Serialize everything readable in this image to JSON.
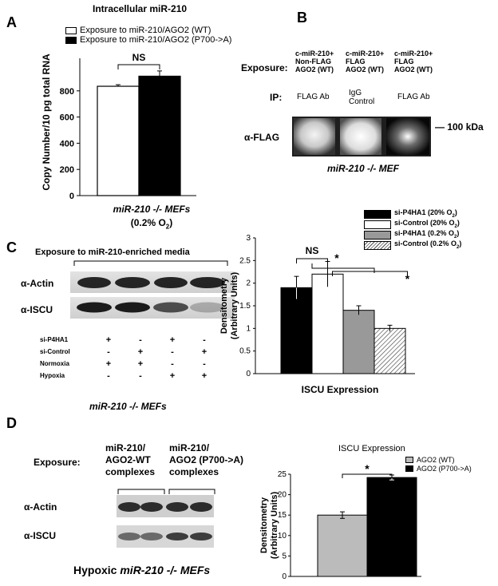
{
  "panels": {
    "A": {
      "letter": "A",
      "title": "Intracellular miR-210",
      "legend": [
        {
          "label": "Exposure to miR-210/AGO2 (WT)",
          "fill": "#ffffff"
        },
        {
          "label": "Exposure to miR-210/AGO2 (P700->A)",
          "fill": "#000000"
        }
      ],
      "significance": "NS",
      "ylabel": "Copy Number/10 pg total RNA",
      "xlabel_main": "miR-210 -/- MEFs",
      "xlabel_sub": "(0.2% O",
      "xlabel_sub_2": "2",
      "xlabel_sub_3": ")",
      "yticks": [
        "0",
        "200",
        "400",
        "600",
        "800"
      ]
    },
    "B": {
      "letter": "B",
      "exposure_label": "Exposure:",
      "exposure_cols": [
        [
          "c-miR-210+",
          "Non-FLAG",
          "AGO2 (WT)"
        ],
        [
          "c-miR-210+",
          "FLAG",
          "AGO2 (WT)"
        ],
        [
          "c-miR-210+",
          "FLAG",
          "AGO2 (WT)"
        ]
      ],
      "ip_label": "IP:",
      "ip_cols": [
        "FLAG Ab",
        "IgG\nControl",
        "FLAG Ab"
      ],
      "blot_label": "α-FLAG",
      "marker": "— 100 kDa",
      "caption": "miR-210 -/- MEF"
    },
    "C": {
      "letter": "C",
      "blot_title": "Exposure to miR-210-enriched media",
      "actin_label": "α-Actin",
      "iscu_label": "α-ISCU",
      "table_rows": [
        {
          "label": "si-P4HA1",
          "values": [
            "+",
            "-",
            "+",
            "-"
          ]
        },
        {
          "label": "si-Control",
          "values": [
            "-",
            "+",
            "-",
            "+"
          ]
        },
        {
          "label": "Normoxia",
          "values": [
            "+",
            "+",
            "-",
            "-"
          ]
        },
        {
          "label": "Hypoxia",
          "values": [
            "-",
            "-",
            "+",
            "+"
          ]
        }
      ],
      "caption": "miR-210 -/- MEFs",
      "legend": [
        {
          "label": "si-P4HA1 (20% O",
          "sub": "2",
          "end": ")",
          "fill": "#000000"
        },
        {
          "label": "si-Control (20% O",
          "sub": "2",
          "end": ")",
          "fill": "#ffffff"
        },
        {
          "label": "si-P4HA1 (0.2% O",
          "sub": "2",
          "end": ")",
          "fill": "#999999"
        },
        {
          "label": "si-Control (0.2% O",
          "sub": "2",
          "end": ")",
          "fill": "hatch"
        }
      ],
      "significance_1": "NS",
      "significance_2": "*",
      "significance_3": "*",
      "ylabel_1": "Densitometry",
      "ylabel_2": "(Arbitrary Units)",
      "xlabel": "ISCU Expression",
      "yticks": [
        "0",
        "0.5",
        "1",
        "1.5",
        "2",
        "2.5",
        "3"
      ]
    },
    "D": {
      "letter": "D",
      "exposure_label": "Exposure:",
      "col1": [
        "miR-210/",
        "AGO2-WT",
        "complexes"
      ],
      "col2": [
        "miR-210/",
        "AGO2 (P700->A)",
        "complexes"
      ],
      "actin_label": "α-Actin",
      "iscu_label": "α-ISCU",
      "caption_1": "Hypoxic ",
      "caption_2": "miR-210 -/- MEFs",
      "chart_title": "ISCU Expression",
      "legend": [
        {
          "label": "AGO2 (WT)",
          "fill": "#bbbbbb"
        },
        {
          "label": "AGO2 (P700->A)",
          "fill": "#000000"
        }
      ],
      "significance": "*",
      "ylabel_1": "Densitometry",
      "ylabel_2": "(Arbitrary Units)",
      "yticks": [
        "0",
        "5",
        "10",
        "15",
        "20",
        "25"
      ]
    }
  },
  "chart_data": [
    {
      "type": "bar",
      "title": "Intracellular miR-210",
      "categories": [
        "miR-210 -/- MEFs (0.2% O2)"
      ],
      "series": [
        {
          "name": "Exposure to miR-210/AGO2 (WT)",
          "values": [
            835
          ],
          "error": [
            12
          ],
          "color": "#ffffff"
        },
        {
          "name": "Exposure to miR-210/AGO2 (P700->A)",
          "values": [
            912
          ],
          "error": [
            40
          ],
          "color": "#000000"
        }
      ],
      "ylabel": "Copy Number/10 pg total RNA",
      "ylim": [
        0,
        1000
      ],
      "annotations": [
        "NS"
      ]
    },
    {
      "type": "bar",
      "title": "",
      "xlabel": "ISCU Expression",
      "categories": [
        "si-P4HA1 (20% O2)",
        "si-Control (20% O2)",
        "si-P4HA1 (0.2% O2)",
        "si-Control (0.2% O2)"
      ],
      "values": [
        1.9,
        2.2,
        1.4,
        1.0
      ],
      "errors": [
        0.25,
        0.28,
        0.1,
        0.07
      ],
      "colors": [
        "#000000",
        "#ffffff",
        "#999999",
        "hatch"
      ],
      "ylabel": "Densitometry (Arbitrary Units)",
      "ylim": [
        0,
        3
      ],
      "annotations": [
        "NS",
        "*",
        "*"
      ]
    },
    {
      "type": "bar",
      "title": "ISCU Expression",
      "categories": [
        "AGO2 (WT)",
        "AGO2 (P700->A)"
      ],
      "values": [
        15,
        24.2
      ],
      "errors": [
        0.8,
        0.6
      ],
      "colors": [
        "#bbbbbb",
        "#000000"
      ],
      "ylabel": "Densitometry (Arbitrary Units)",
      "ylim": [
        0,
        25
      ],
      "annotations": [
        "*"
      ]
    }
  ]
}
